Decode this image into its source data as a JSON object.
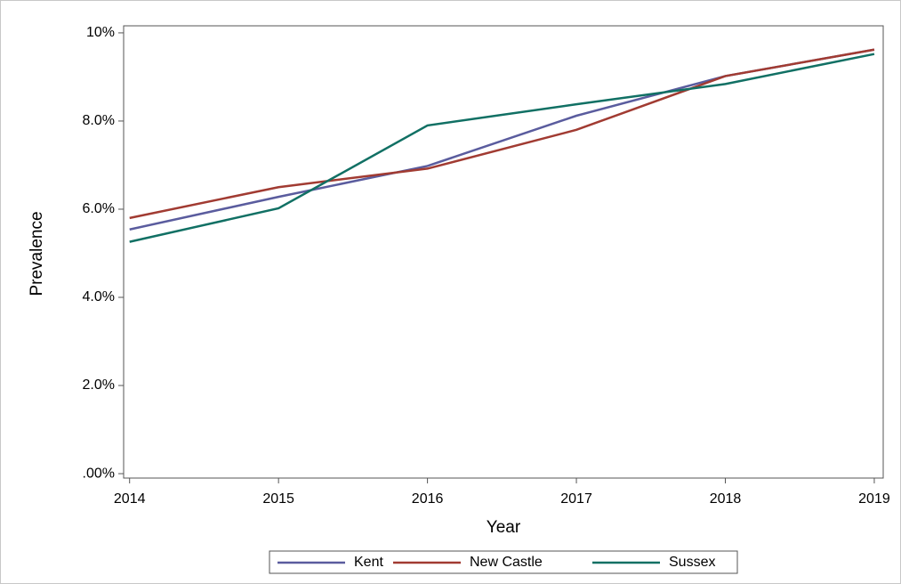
{
  "chart_data": {
    "type": "line",
    "x_label": "Year",
    "y_label": "Prevalence",
    "x": [
      2014,
      2015,
      2016,
      2017,
      2018,
      2019
    ],
    "series": [
      {
        "name": "Kent",
        "color": "#5a5c9e",
        "values": [
          5.54,
          6.28,
          6.98,
          8.12,
          9.02,
          9.62
        ]
      },
      {
        "name": "New Castle",
        "color": "#a13b32",
        "values": [
          5.8,
          6.5,
          6.92,
          7.8,
          9.02,
          9.62
        ]
      },
      {
        "name": "Sussex",
        "color": "#117064",
        "values": [
          5.26,
          6.02,
          7.9,
          8.38,
          8.84,
          9.52
        ]
      }
    ],
    "xlim": [
      2013.96,
      2019.06
    ],
    "xticks": [
      2014,
      2015,
      2016,
      2017,
      2018,
      2019
    ],
    "ylim": [
      -0.1,
      10.16
    ],
    "yticks": [
      {
        "value": 0,
        "label": ".00%"
      },
      {
        "value": 2,
        "label": "2.0%"
      },
      {
        "value": 4,
        "label": "4.0%"
      },
      {
        "value": 6,
        "label": "6.0%"
      },
      {
        "value": 8,
        "label": "8.0%"
      },
      {
        "value": 10,
        "label": "10%"
      }
    ],
    "grid": false,
    "legend": "bottom"
  }
}
